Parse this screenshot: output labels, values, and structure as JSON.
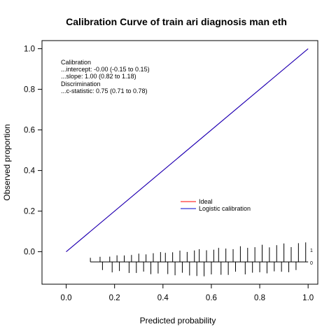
{
  "chart_data": {
    "type": "line",
    "title": "Calibration Curve of train ari diagnosis man eth",
    "xlabel": "Predicted probability",
    "ylabel": "Observed proportion",
    "xlim": [
      -0.1,
      1.04
    ],
    "ylim": [
      -0.16,
      1.04
    ],
    "x_ticks": [
      0.0,
      0.2,
      0.4,
      0.6,
      0.8,
      1.0
    ],
    "y_ticks": [
      0.0,
      0.2,
      0.4,
      0.6,
      0.8,
      1.0
    ],
    "x_tick_labels": [
      "0.0",
      "0.2",
      "0.4",
      "0.6",
      "0.8",
      "1.0"
    ],
    "y_tick_labels": [
      "0.0",
      "0.2",
      "0.4",
      "0.6",
      "0.8",
      "1.0"
    ],
    "series": [
      {
        "name": "Ideal",
        "color": "#ff0000",
        "x": [
          0,
          1
        ],
        "y": [
          0,
          1
        ]
      },
      {
        "name": "Logistic calibration",
        "color": "#0000cd",
        "x": [
          0,
          1
        ],
        "y": [
          0,
          1
        ]
      }
    ],
    "legend": {
      "placement": "center-right",
      "entries": [
        "Ideal",
        "Logistic calibration"
      ]
    },
    "annotations": {
      "calibration_header": "Calibration",
      "intercept": "...intercept: -0.00 (-0.15 to 0.15)",
      "slope": "...slope: 1.00 (0.82 to 1.18)",
      "discrimination_header": "Discrimination",
      "cstat": "...c-statistic: 0.75 (0.71 to 0.78)"
    },
    "distribution": {
      "baseline_y": -0.05,
      "range": [
        0.1,
        1.0
      ],
      "label_event": "1",
      "label_nonevent": "0",
      "events": [
        0.1,
        0.14,
        0.18,
        0.21,
        0.24,
        0.27,
        0.3,
        0.33,
        0.36,
        0.39,
        0.41,
        0.44,
        0.47,
        0.5,
        0.53,
        0.55,
        0.58,
        0.61,
        0.63,
        0.66,
        0.69,
        0.72,
        0.75,
        0.78,
        0.81,
        0.84,
        0.87,
        0.9,
        0.93,
        0.96,
        0.99
      ],
      "nonevents": [
        0.15,
        0.19,
        0.22,
        0.26,
        0.29,
        0.32,
        0.35,
        0.38,
        0.42,
        0.45,
        0.48,
        0.51,
        0.54,
        0.57,
        0.6,
        0.64,
        0.67,
        0.7,
        0.74,
        0.77,
        0.8,
        0.83,
        0.86,
        0.89,
        0.92,
        0.95
      ]
    }
  }
}
